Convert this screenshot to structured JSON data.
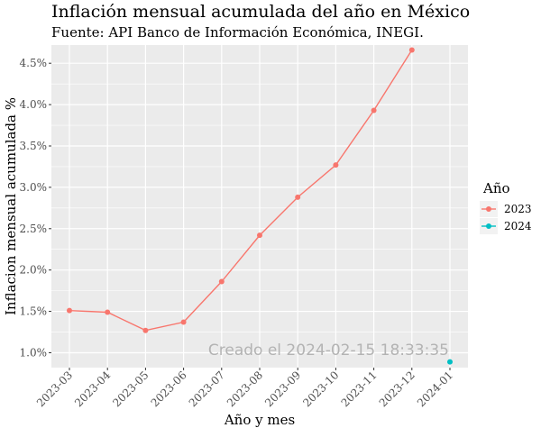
{
  "chart_data": {
    "type": "line",
    "title": "Inflación mensual acumulada del año en México",
    "subtitle": "Fuente: API Banco de Información Económica, INEGI.",
    "xlabel": "Año y mes",
    "ylabel": "Inflacion mensual acumulada %",
    "categories": [
      "2023-03",
      "2023-04",
      "2023-05",
      "2023-06",
      "2023-07",
      "2023-08",
      "2023-09",
      "2023-10",
      "2023-11",
      "2023-12",
      "2024-01"
    ],
    "y_ticks": [
      1.0,
      1.5,
      2.0,
      2.5,
      3.0,
      3.5,
      4.0,
      4.5
    ],
    "y_tick_labels": [
      "1.0%",
      "1.5%",
      "2.0%",
      "2.5%",
      "3.0%",
      "3.5%",
      "4.0%",
      "4.5%"
    ],
    "ylim": [
      0.82,
      4.72
    ],
    "grid": true,
    "legend": {
      "title": "Año",
      "position": "right"
    },
    "series": [
      {
        "name": "2023",
        "color": "#F8766D",
        "x": [
          "2023-03",
          "2023-04",
          "2023-05",
          "2023-06",
          "2023-07",
          "2023-08",
          "2023-09",
          "2023-10",
          "2023-11",
          "2023-12"
        ],
        "values": [
          1.51,
          1.49,
          1.27,
          1.37,
          1.86,
          2.42,
          2.88,
          3.27,
          3.93,
          4.66
        ]
      },
      {
        "name": "2024",
        "color": "#00BFC4",
        "x": [
          "2024-01"
        ],
        "values": [
          0.89
        ]
      }
    ],
    "annotation": "Creado el  2024-02-15 18:33:35"
  }
}
